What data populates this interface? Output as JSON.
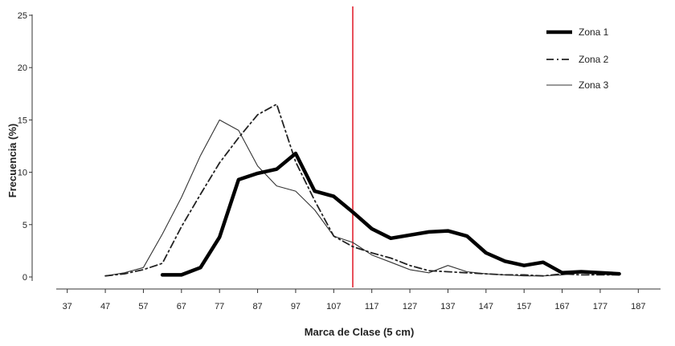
{
  "chart_data": {
    "type": "line",
    "xlabel": "Marca de Clase (5 cm)",
    "ylabel": "Frecuencia (%)",
    "xlim": [
      32,
      192
    ],
    "ylim": [
      0,
      25
    ],
    "x_ticks": [
      37,
      47,
      57,
      67,
      77,
      87,
      97,
      107,
      117,
      127,
      137,
      147,
      157,
      167,
      177,
      187
    ],
    "y_ticks": [
      0,
      5,
      10,
      15,
      20,
      25
    ],
    "grid": false,
    "legend_position": "top-right",
    "reference_line_x": 112,
    "reference_line_color": "#e8505b",
    "series": [
      {
        "name": "Zona 1",
        "style": "thick-solid",
        "x": [
          62,
          67,
          72,
          77,
          82,
          87,
          92,
          97,
          102,
          107,
          112,
          117,
          122,
          127,
          132,
          137,
          142,
          147,
          152,
          157,
          162,
          167,
          172,
          177,
          182
        ],
        "values": [
          0.2,
          0.2,
          0.9,
          3.8,
          9.3,
          9.9,
          10.3,
          11.8,
          8.2,
          7.7,
          6.2,
          4.6,
          3.7,
          4.0,
          4.3,
          4.4,
          3.9,
          2.3,
          1.5,
          1.1,
          1.4,
          0.4,
          0.5,
          0.4,
          0.3
        ]
      },
      {
        "name": "Zona 2",
        "style": "dash-dot",
        "x": [
          47,
          52,
          57,
          62,
          67,
          72,
          77,
          82,
          87,
          92,
          97,
          102,
          107,
          112,
          117,
          122,
          127,
          132,
          137,
          142,
          147,
          152,
          157,
          162,
          167,
          172,
          177,
          182
        ],
        "values": [
          0.1,
          0.3,
          0.7,
          1.3,
          4.8,
          7.9,
          10.9,
          13.3,
          15.5,
          16.5,
          11.0,
          7.3,
          3.9,
          2.9,
          2.3,
          1.8,
          1.1,
          0.6,
          0.5,
          0.4,
          0.3,
          0.2,
          0.2,
          0.1,
          0.3,
          0.2,
          0.2,
          0.2
        ]
      },
      {
        "name": "Zona 3",
        "style": "thin-solid",
        "x": [
          47,
          52,
          57,
          62,
          67,
          72,
          77,
          82,
          87,
          92,
          97,
          102,
          107,
          112,
          117,
          122,
          127,
          132,
          137,
          142,
          147,
          152,
          157,
          162,
          167,
          172,
          177,
          182
        ],
        "values": [
          0.1,
          0.4,
          0.9,
          4.1,
          7.6,
          11.6,
          15.0,
          14.0,
          10.6,
          8.7,
          8.2,
          6.4,
          3.9,
          3.3,
          2.1,
          1.4,
          0.7,
          0.4,
          1.1,
          0.5,
          0.3,
          0.2,
          0.1,
          0.1,
          0.2,
          0.4,
          0.3,
          0.2
        ]
      }
    ]
  }
}
